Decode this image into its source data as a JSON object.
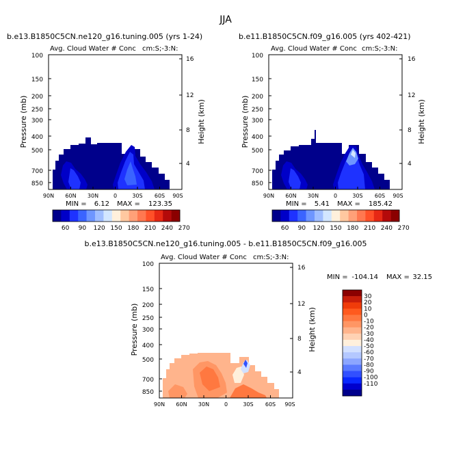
{
  "page_title": "JJA",
  "palette": {
    "abs": [
      "#00008b",
      "#0000c8",
      "#1e32ff",
      "#3a64ff",
      "#6e96ff",
      "#a0beff",
      "#d2e6ff",
      "#fff0dc",
      "#ffc8a0",
      "#ffa078",
      "#ff7850",
      "#ff5028",
      "#e62814",
      "#b40a0a",
      "#8b0000"
    ],
    "diff": [
      "#00008b",
      "#0000cd",
      "#0a28ff",
      "#3250ff",
      "#5a7aff",
      "#8ca6ff",
      "#b4c8ff",
      "#d2e0ff",
      "#fff0dc",
      "#ffd2b4",
      "#ffb48c",
      "#ff9664",
      "#ff7840",
      "#ff5a1e",
      "#f03c0a",
      "#c81e0a",
      "#8b0000"
    ]
  },
  "chart_data": [
    {
      "type": "contour",
      "title": "b.e13.B1850C5CN.ne120_g16.tuning.005 (yrs 1-24)",
      "subtitle_left": "Avg. Cloud Water # Conc",
      "subtitle_right": "cm:S;-3:N:",
      "ylabel": "Pressure (mb)",
      "ylabel_right": "Height (km)",
      "x_ticks": [
        "90N",
        "60N",
        "30N",
        "0",
        "30S",
        "60S",
        "90S"
      ],
      "y_ticks": [
        "100",
        "150",
        "200",
        "250",
        "300",
        "400",
        "500",
        "700",
        "850"
      ],
      "height_ticks": [
        "16",
        "12",
        "8",
        "4"
      ],
      "min_label": "MIN =",
      "min_value": "6.12",
      "max_label": "MAX =",
      "max_value": "123.35",
      "colorbar_labels": [
        "60",
        "90",
        "120",
        "150",
        "180",
        "210",
        "240",
        "270"
      ]
    },
    {
      "type": "contour",
      "title": "b.e11.B1850C5CN.f09_g16.005 (yrs 402-421)",
      "subtitle_left": "Avg. Cloud Water # Conc",
      "subtitle_right": "cm:S;-3:N:",
      "ylabel": "Pressure (mb)",
      "ylabel_right": "Height (km)",
      "x_ticks": [
        "90N",
        "60N",
        "30N",
        "0",
        "30S",
        "60S",
        "90S"
      ],
      "y_ticks": [
        "100",
        "150",
        "200",
        "250",
        "300",
        "400",
        "500",
        "700",
        "850"
      ],
      "height_ticks": [
        "16",
        "12",
        "8",
        "4"
      ],
      "min_label": "MIN =",
      "min_value": "5.41",
      "max_label": "MAX =",
      "max_value": "185.42",
      "colorbar_labels": [
        "60",
        "90",
        "120",
        "150",
        "180",
        "210",
        "240",
        "270"
      ]
    },
    {
      "type": "contour",
      "title": "b.e13.B1850C5CN.ne120_g16.tuning.005 - b.e11.B1850C5CN.f09_g16.005",
      "subtitle_left": "Avg. Cloud Water # Conc",
      "subtitle_right": "cm:S;-3:N:",
      "ylabel": "Pressure (mb)",
      "ylabel_right": "Height (km)",
      "x_ticks": [
        "90N",
        "60N",
        "30N",
        "0",
        "30S",
        "60S",
        "90S"
      ],
      "y_ticks": [
        "100",
        "150",
        "200",
        "250",
        "300",
        "400",
        "500",
        "700",
        "850"
      ],
      "height_ticks": [
        "16",
        "12",
        "8",
        "4"
      ],
      "min_label": "MIN =",
      "min_value": "-104.14",
      "max_label": "MAX =",
      "max_value": "32.15",
      "colorbar_labels": [
        "30",
        "20",
        "10",
        "0",
        "-10",
        "-20",
        "-30",
        "-40",
        "-50",
        "-60",
        "-70",
        "-80",
        "-90",
        "-100",
        "-110"
      ]
    }
  ]
}
